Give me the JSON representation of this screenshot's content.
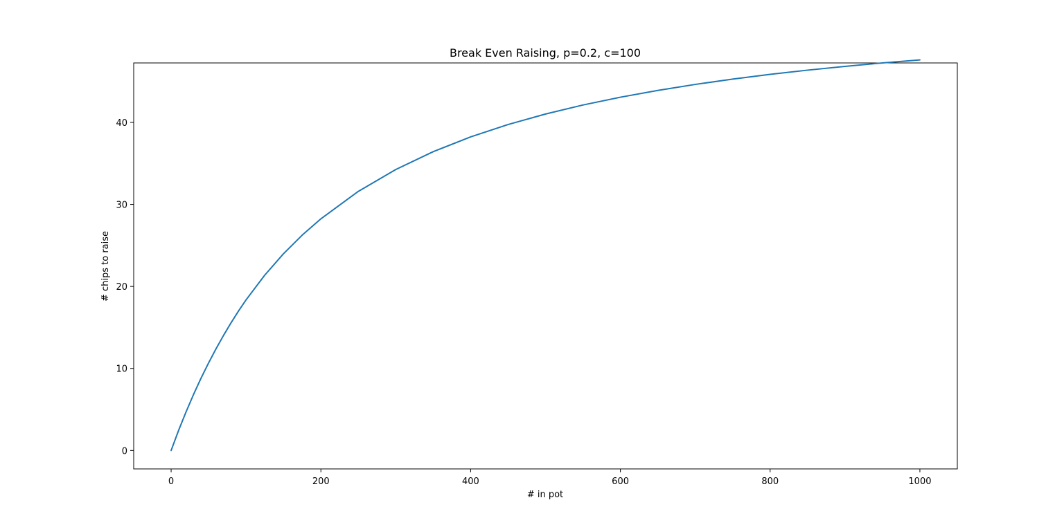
{
  "chart_data": {
    "type": "line",
    "title": "Break Even Raising, p=0.2, c=100",
    "xlabel": "# in pot",
    "ylabel": "# chips to raise",
    "xlim": [
      -50,
      1050
    ],
    "ylim": [
      -2.25,
      47.25
    ],
    "xticks": [
      0,
      200,
      400,
      600,
      800,
      1000
    ],
    "yticks": [
      0,
      10,
      20,
      30,
      40
    ],
    "grid": false,
    "series": [
      {
        "color": "#1f77b4",
        "x": [
          0,
          10,
          20,
          30,
          40,
          50,
          60,
          70,
          80,
          90,
          100,
          125,
          150,
          175,
          200,
          250,
          300,
          350,
          400,
          450,
          500,
          550,
          600,
          650,
          700,
          750,
          800,
          850,
          900,
          950,
          1000
        ],
        "y": [
          0.0,
          2.45,
          4.72,
          6.84,
          8.82,
          10.67,
          12.4,
          14.03,
          15.56,
          17.0,
          18.35,
          21.37,
          23.98,
          26.25,
          28.24,
          31.59,
          34.25,
          36.43,
          38.23,
          39.74,
          41.02,
          42.12,
          43.07,
          43.9,
          44.63,
          45.28,
          45.86,
          46.37,
          46.83,
          47.25,
          47.62
        ]
      }
    ]
  }
}
